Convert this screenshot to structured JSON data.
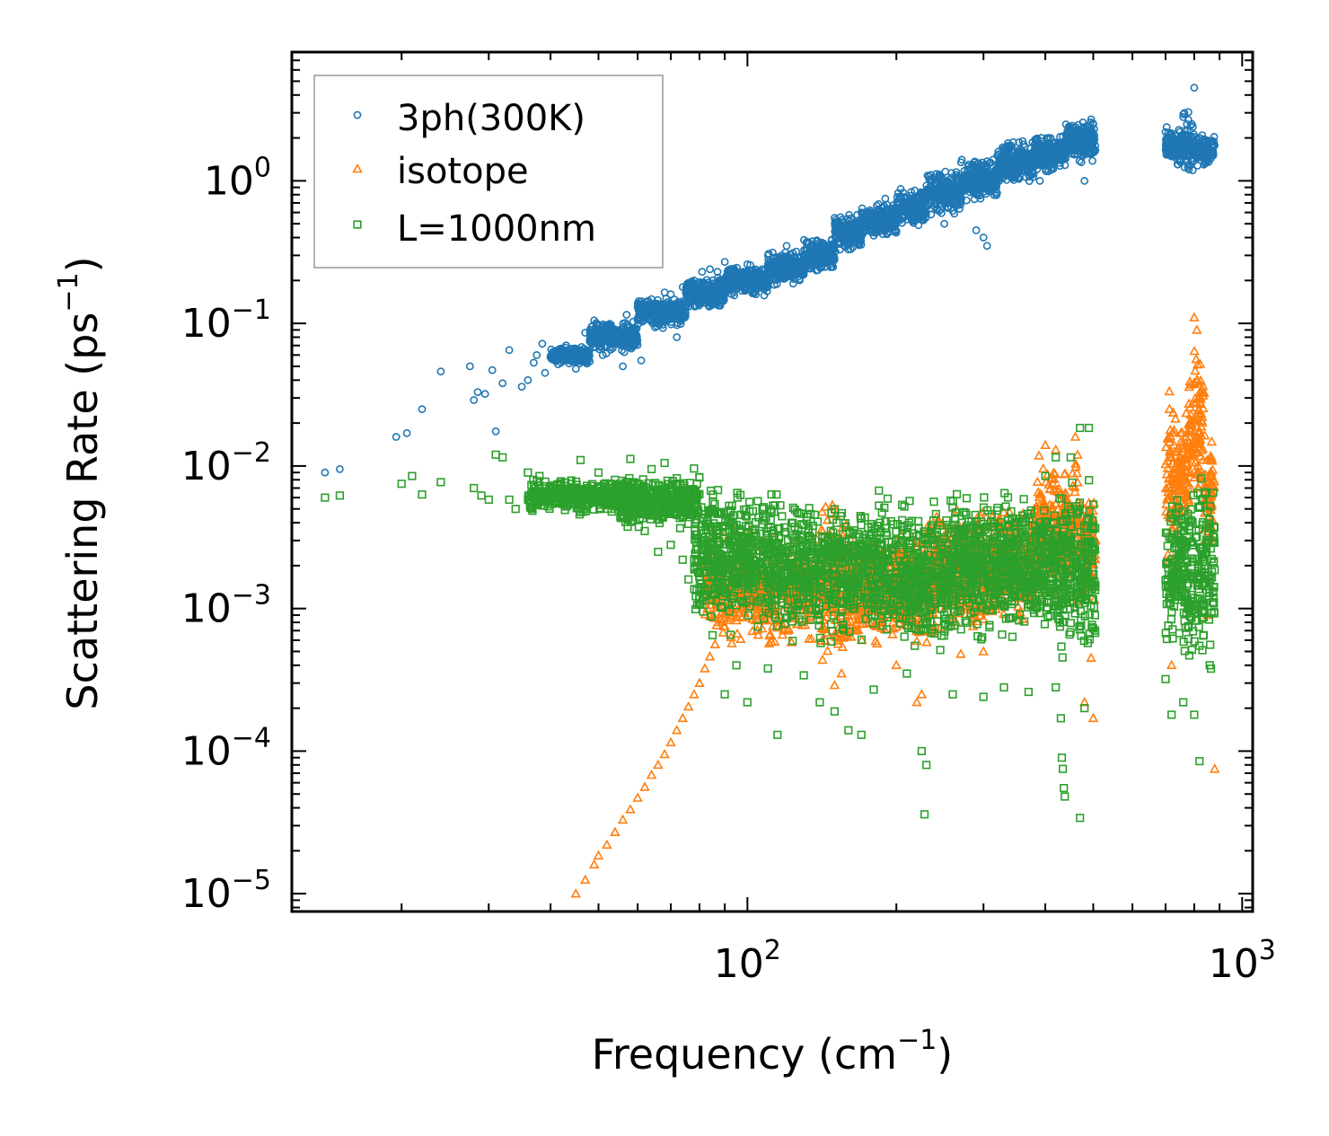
{
  "chart_data": {
    "type": "scatter",
    "title": "",
    "xlabel": "Frequency (cm",
    "xlabel_sup": "−1",
    "xlabel_end": ")",
    "ylabel": "Scattering Rate (ps",
    "ylabel_sup": "−1",
    "ylabel_end": ")",
    "xscale": "log",
    "yscale": "log",
    "xlim": [
      12,
      1050
    ],
    "ylim": [
      7.5e-06,
      8
    ],
    "x_ticks": [
      {
        "value": 100,
        "base": "10",
        "exp": "2"
      },
      {
        "value": 1000,
        "base": "10",
        "exp": "3"
      }
    ],
    "y_ticks": [
      {
        "value": 1e-05,
        "base": "10",
        "exp": "−5"
      },
      {
        "value": 0.0001,
        "base": "10",
        "exp": "−4"
      },
      {
        "value": 0.001,
        "base": "10",
        "exp": "−3"
      },
      {
        "value": 0.01,
        "base": "10",
        "exp": "−2"
      },
      {
        "value": 0.1,
        "base": "10",
        "exp": "−1"
      },
      {
        "value": 1,
        "base": "10",
        "exp": "0"
      }
    ],
    "legend_position": "top-left",
    "grid": false,
    "series": [
      {
        "name": "3ph(300K)",
        "marker": "circle",
        "color": "#1f77b4",
        "points": [
          [
            14,
            0.009
          ],
          [
            15,
            0.0095
          ],
          [
            19.5,
            0.016
          ],
          [
            20.5,
            0.017
          ],
          [
            22,
            0.025
          ],
          [
            24,
            0.046
          ],
          [
            27.5,
            0.05
          ],
          [
            28,
            0.029
          ],
          [
            28.5,
            0.033
          ],
          [
            29.5,
            0.032
          ],
          [
            30.5,
            0.047
          ],
          [
            31,
            0.0175
          ],
          [
            32,
            0.038
          ],
          [
            33,
            0.065
          ],
          [
            35,
            0.036
          ],
          [
            36,
            0.04
          ],
          [
            37,
            0.053
          ],
          [
            37.5,
            0.06
          ],
          [
            38.5,
            0.072
          ],
          [
            39,
            0.045
          ],
          [
            40,
            0.058
          ],
          [
            41,
            0.055
          ],
          [
            43,
            0.07
          ],
          [
            44,
            0.06
          ],
          [
            45,
            0.048
          ],
          [
            46,
            0.065
          ],
          [
            47,
            0.086
          ],
          [
            48,
            0.075
          ],
          [
            49,
            0.105
          ],
          [
            50,
            0.09
          ],
          [
            51,
            0.06
          ],
          [
            53,
            0.098
          ],
          [
            55,
            0.075
          ],
          [
            56,
            0.05
          ],
          [
            57,
            0.115
          ],
          [
            58,
            0.07
          ],
          [
            60,
            0.13
          ],
          [
            61,
            0.055
          ],
          [
            63,
            0.12
          ],
          [
            64,
            0.148
          ],
          [
            66,
            0.1
          ],
          [
            68,
            0.165
          ],
          [
            70,
            0.16
          ],
          [
            72,
            0.08
          ],
          [
            74,
            0.18
          ],
          [
            76,
            0.17
          ],
          [
            78,
            0.2
          ],
          [
            81,
            0.23
          ],
          [
            84,
            0.24
          ],
          [
            87,
            0.23
          ],
          [
            90,
            0.27
          ],
          [
            95,
            0.2
          ],
          [
            100,
            0.26
          ],
          [
            104,
            0.16
          ],
          [
            110,
            0.3
          ],
          [
            115,
            0.27
          ],
          [
            120,
            0.35
          ],
          [
            130,
            0.22
          ],
          [
            140,
            0.33
          ],
          [
            150,
            0.55
          ],
          [
            160,
            0.45
          ],
          [
            170,
            0.6
          ],
          [
            180,
            0.5
          ],
          [
            190,
            0.75
          ],
          [
            200,
            0.6
          ],
          [
            215,
            0.7
          ],
          [
            225,
            0.8
          ],
          [
            235,
            1.1
          ],
          [
            245,
            0.9
          ],
          [
            250,
            0.5
          ],
          [
            265,
            1.1
          ],
          [
            280,
            1.3
          ],
          [
            290,
            0.45
          ],
          [
            300,
            0.4
          ],
          [
            305,
            0.35
          ],
          [
            320,
            1.5
          ],
          [
            340,
            1.2
          ],
          [
            360,
            1.9
          ],
          [
            380,
            1.6
          ],
          [
            390,
            1.0
          ],
          [
            410,
            2.0
          ],
          [
            430,
            1.5
          ],
          [
            450,
            2.3
          ],
          [
            470,
            2.0
          ],
          [
            480,
            1.0
          ],
          [
            495,
            2.7
          ],
          [
            500,
            2.5
          ],
          [
            700,
            2.2
          ],
          [
            720,
            1.8
          ],
          [
            740,
            1.4
          ],
          [
            760,
            2.8
          ],
          [
            780,
            1.2
          ],
          [
            800,
            4.5
          ],
          [
            805,
            1.6
          ],
          [
            820,
            2.0
          ],
          [
            850,
            1.5
          ],
          [
            870,
            1.8
          ]
        ],
        "bands": [
          [
            40,
            48,
            0.05,
            0.07
          ],
          [
            48,
            60,
            0.06,
            0.11
          ],
          [
            60,
            75,
            0.09,
            0.16
          ],
          [
            75,
            90,
            0.12,
            0.22
          ],
          [
            90,
            110,
            0.15,
            0.27
          ],
          [
            110,
            130,
            0.18,
            0.33
          ],
          [
            130,
            150,
            0.22,
            0.42
          ],
          [
            150,
            170,
            0.3,
            0.6
          ],
          [
            170,
            200,
            0.38,
            0.72
          ],
          [
            200,
            230,
            0.45,
            0.95
          ],
          [
            230,
            270,
            0.55,
            1.25
          ],
          [
            270,
            320,
            0.7,
            1.5
          ],
          [
            320,
            380,
            0.9,
            2.0
          ],
          [
            380,
            440,
            1.1,
            2.3
          ],
          [
            440,
            505,
            1.25,
            2.8
          ],
          [
            700,
            760,
            1.2,
            2.5
          ],
          [
            760,
            800,
            1.0,
            3.4
          ],
          [
            800,
            880,
            1.2,
            2.3
          ]
        ]
      },
      {
        "name": "isotope",
        "marker": "triangle",
        "color": "#ff7f0e",
        "points": [
          [
            45,
            1e-05
          ],
          [
            47,
            1.25e-05
          ],
          [
            49,
            1.6e-05
          ],
          [
            50,
            1.85e-05
          ],
          [
            52,
            2.2e-05
          ],
          [
            54,
            2.7e-05
          ],
          [
            56,
            3.3e-05
          ],
          [
            58,
            3.9e-05
          ],
          [
            60,
            4.7e-05
          ],
          [
            62,
            5.6e-05
          ],
          [
            64,
            6.8e-05
          ],
          [
            66,
            8e-05
          ],
          [
            68,
            9.5e-05
          ],
          [
            70,
            0.000115
          ],
          [
            72,
            0.00014
          ],
          [
            74,
            0.00017
          ],
          [
            76,
            0.000205
          ],
          [
            78,
            0.00025
          ],
          [
            80,
            0.0003
          ],
          [
            82,
            0.00038
          ],
          [
            84,
            0.00046
          ],
          [
            86,
            0.00056
          ],
          [
            90,
            0.00075
          ],
          [
            150,
            0.00029
          ],
          [
            155,
            0.00035
          ],
          [
            200,
            0.0004
          ],
          [
            220,
            0.00022
          ],
          [
            225,
            0.00025
          ],
          [
            270,
            0.00048
          ],
          [
            300,
            0.0005
          ],
          [
            400,
            0.014
          ],
          [
            420,
            0.013
          ],
          [
            460,
            0.016
          ],
          [
            480,
            0.00022
          ],
          [
            500,
            0.00017
          ],
          [
            495,
            0.00045
          ],
          [
            720,
            0.0004
          ],
          [
            800,
            0.11
          ],
          [
            810,
            0.09
          ],
          [
            850,
            0.0009
          ],
          [
            880,
            7.5e-05
          ]
        ],
        "bands": [
          [
            82,
            140,
            0.00045,
            0.004
          ],
          [
            140,
            160,
            0.0003,
            0.007
          ],
          [
            160,
            210,
            0.0005,
            0.004
          ],
          [
            210,
            240,
            0.0004,
            0.0045
          ],
          [
            240,
            300,
            0.0006,
            0.006
          ],
          [
            300,
            350,
            0.0007,
            0.006
          ],
          [
            350,
            380,
            0.0007,
            0.006
          ],
          [
            380,
            430,
            0.0008,
            0.013
          ],
          [
            430,
            470,
            0.0008,
            0.015
          ],
          [
            470,
            505,
            0.0007,
            0.01
          ],
          [
            700,
            740,
            0.0015,
            0.04
          ],
          [
            740,
            780,
            0.003,
            0.025
          ],
          [
            780,
            840,
            0.004,
            0.09
          ],
          [
            840,
            880,
            0.002,
            0.02
          ]
        ]
      },
      {
        "name": "L=1000nm",
        "marker": "square",
        "color": "#2ca02c",
        "points": [
          [
            14,
            0.006
          ],
          [
            15,
            0.0062
          ],
          [
            20,
            0.0075
          ],
          [
            21,
            0.0085
          ],
          [
            22,
            0.0063
          ],
          [
            24,
            0.0077
          ],
          [
            28,
            0.007
          ],
          [
            29,
            0.0062
          ],
          [
            30,
            0.0058
          ],
          [
            31,
            0.012
          ],
          [
            32,
            0.0115
          ],
          [
            33,
            0.0058
          ],
          [
            34,
            0.005
          ],
          [
            36,
            0.009
          ],
          [
            38,
            0.0085
          ],
          [
            40,
            0.006
          ],
          [
            42,
            0.0078
          ],
          [
            44,
            0.0075
          ],
          [
            46,
            0.011
          ],
          [
            48,
            0.0065
          ],
          [
            50,
            0.009
          ],
          [
            52,
            0.0055
          ],
          [
            54,
            0.008
          ],
          [
            56,
            0.0045
          ],
          [
            58,
            0.0112
          ],
          [
            60,
            0.0075
          ],
          [
            62,
            0.0035
          ],
          [
            64,
            0.0095
          ],
          [
            66,
            0.0025
          ],
          [
            68,
            0.0105
          ],
          [
            70,
            0.0028
          ],
          [
            72,
            0.0082
          ],
          [
            74,
            0.0022
          ],
          [
            76,
            0.0016
          ],
          [
            78,
            0.0096
          ],
          [
            80,
            0.0012
          ],
          [
            85,
            0.00065
          ],
          [
            90,
            0.00025
          ],
          [
            95,
            0.0004
          ],
          [
            100,
            0.00022
          ],
          [
            110,
            0.00038
          ],
          [
            115,
            0.00013
          ],
          [
            130,
            0.00034
          ],
          [
            140,
            0.00022
          ],
          [
            150,
            0.00019
          ],
          [
            160,
            0.00014
          ],
          [
            170,
            0.00013
          ],
          [
            180,
            0.00027
          ],
          [
            210,
            0.00035
          ],
          [
            225,
            0.0001
          ],
          [
            228,
            3.6e-05
          ],
          [
            230,
            8e-05
          ],
          [
            260,
            0.00025
          ],
          [
            300,
            0.00024
          ],
          [
            330,
            0.00028
          ],
          [
            370,
            0.00026
          ],
          [
            420,
            0.00028
          ],
          [
            430,
            0.00017
          ],
          [
            432,
            9e-05
          ],
          [
            434,
            7.5e-05
          ],
          [
            436,
            5.5e-05
          ],
          [
            438,
            4.8e-05
          ],
          [
            470,
            3.4e-05
          ],
          [
            480,
            0.0002
          ],
          [
            490,
            0.0185
          ],
          [
            470,
            0.0185
          ],
          [
            450,
            0.0115
          ],
          [
            420,
            0.0115
          ],
          [
            400,
            0.0085
          ],
          [
            700,
            0.00032
          ],
          [
            720,
            0.00018
          ],
          [
            760,
            0.00022
          ],
          [
            800,
            0.00018
          ],
          [
            820,
            8.5e-05
          ],
          [
            860,
            0.0004
          ]
        ],
        "bands": [
          [
            36,
            60,
            0.0045,
            0.0085
          ],
          [
            55,
            80,
            0.0035,
            0.009
          ],
          [
            78,
            100,
            0.0006,
            0.009
          ],
          [
            100,
            140,
            0.0005,
            0.008
          ],
          [
            140,
            200,
            0.0005,
            0.007
          ],
          [
            200,
            260,
            0.0004,
            0.007
          ],
          [
            260,
            340,
            0.0005,
            0.008
          ],
          [
            340,
            420,
            0.0005,
            0.008
          ],
          [
            420,
            505,
            0.0004,
            0.009
          ],
          [
            700,
            760,
            0.0004,
            0.008
          ],
          [
            760,
            880,
            0.0003,
            0.011
          ]
        ]
      }
    ]
  }
}
